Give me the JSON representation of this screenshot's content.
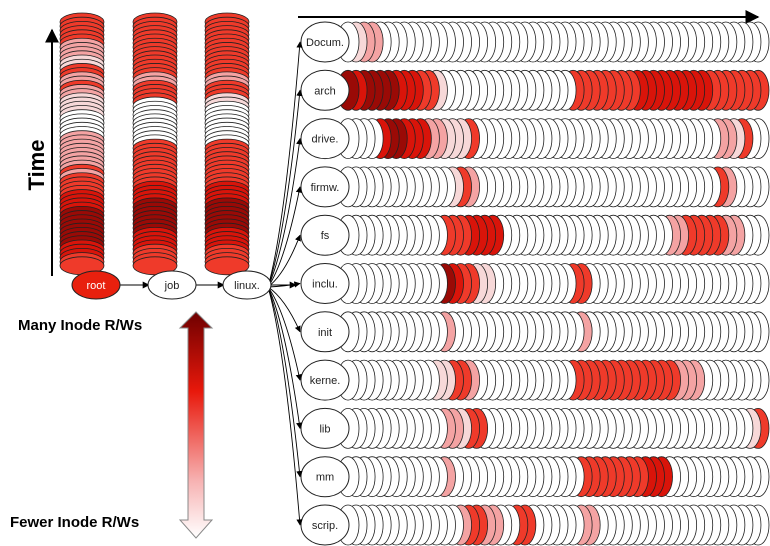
{
  "axis": {
    "time_label": "Time"
  },
  "legend": {
    "many_label": "Many Inode R/Ws",
    "fewer_label": "Fewer Inode R/Ws"
  },
  "path_nodes": [
    {
      "label": "root",
      "fill": "#e8200e"
    },
    {
      "label": "job",
      "fill": "#ffffff"
    },
    {
      "label": "linux.",
      "fill": "#ffffff"
    }
  ],
  "directories": [
    {
      "label": "Docum.",
      "heat": "0122000000000000000000000000000000000000000000000000"
    },
    {
      "label": "arch",
      "heat": "5455554443310000000000000000333333334444444443333333"
    },
    {
      "label": "drive.",
      "heat": "0000455444221113000000000000000000000000000000221300"
    },
    {
      "label": "firmw.",
      "heat": "0000000000000132000000000000000000000000000000320000"
    },
    {
      "label": "fs",
      "heat": "0000000000003334444000000000000000000000223333322000"
    },
    {
      "label": "inclu.",
      "heat": "0000000000005433110000000000330000000000000000000000"
    },
    {
      "label": "init",
      "heat": "0000000000002000000000000000020000000000000000000000"
    },
    {
      "label": "kerne.",
      "heat": "0000000000011332000000000000333333333333322200000000"
    },
    {
      "label": "lib",
      "heat": "0000000000002213300000000000000000000000000000000013"
    },
    {
      "label": "mm",
      "heat": "0000000000002000000000000000033333333444000000000000"
    },
    {
      "label": "scrip.",
      "heat": "0000000000000023322003300000022000000000000000000000"
    }
  ],
  "stacks": [
    {
      "heat": "33333322221133223221111000002222222232333344445555555544433"
    },
    {
      "heat": "33333333333333223333000000000033333333334444555555544443333"
    },
    {
      "heat": "33333333333333223331100000000033333333334444555555544443333"
    }
  ],
  "heat_colors": [
    "#ffffff",
    "#f7d8d8",
    "#f4a3a3",
    "#ef3a2a",
    "#d9140a",
    "#9a0a06"
  ]
}
